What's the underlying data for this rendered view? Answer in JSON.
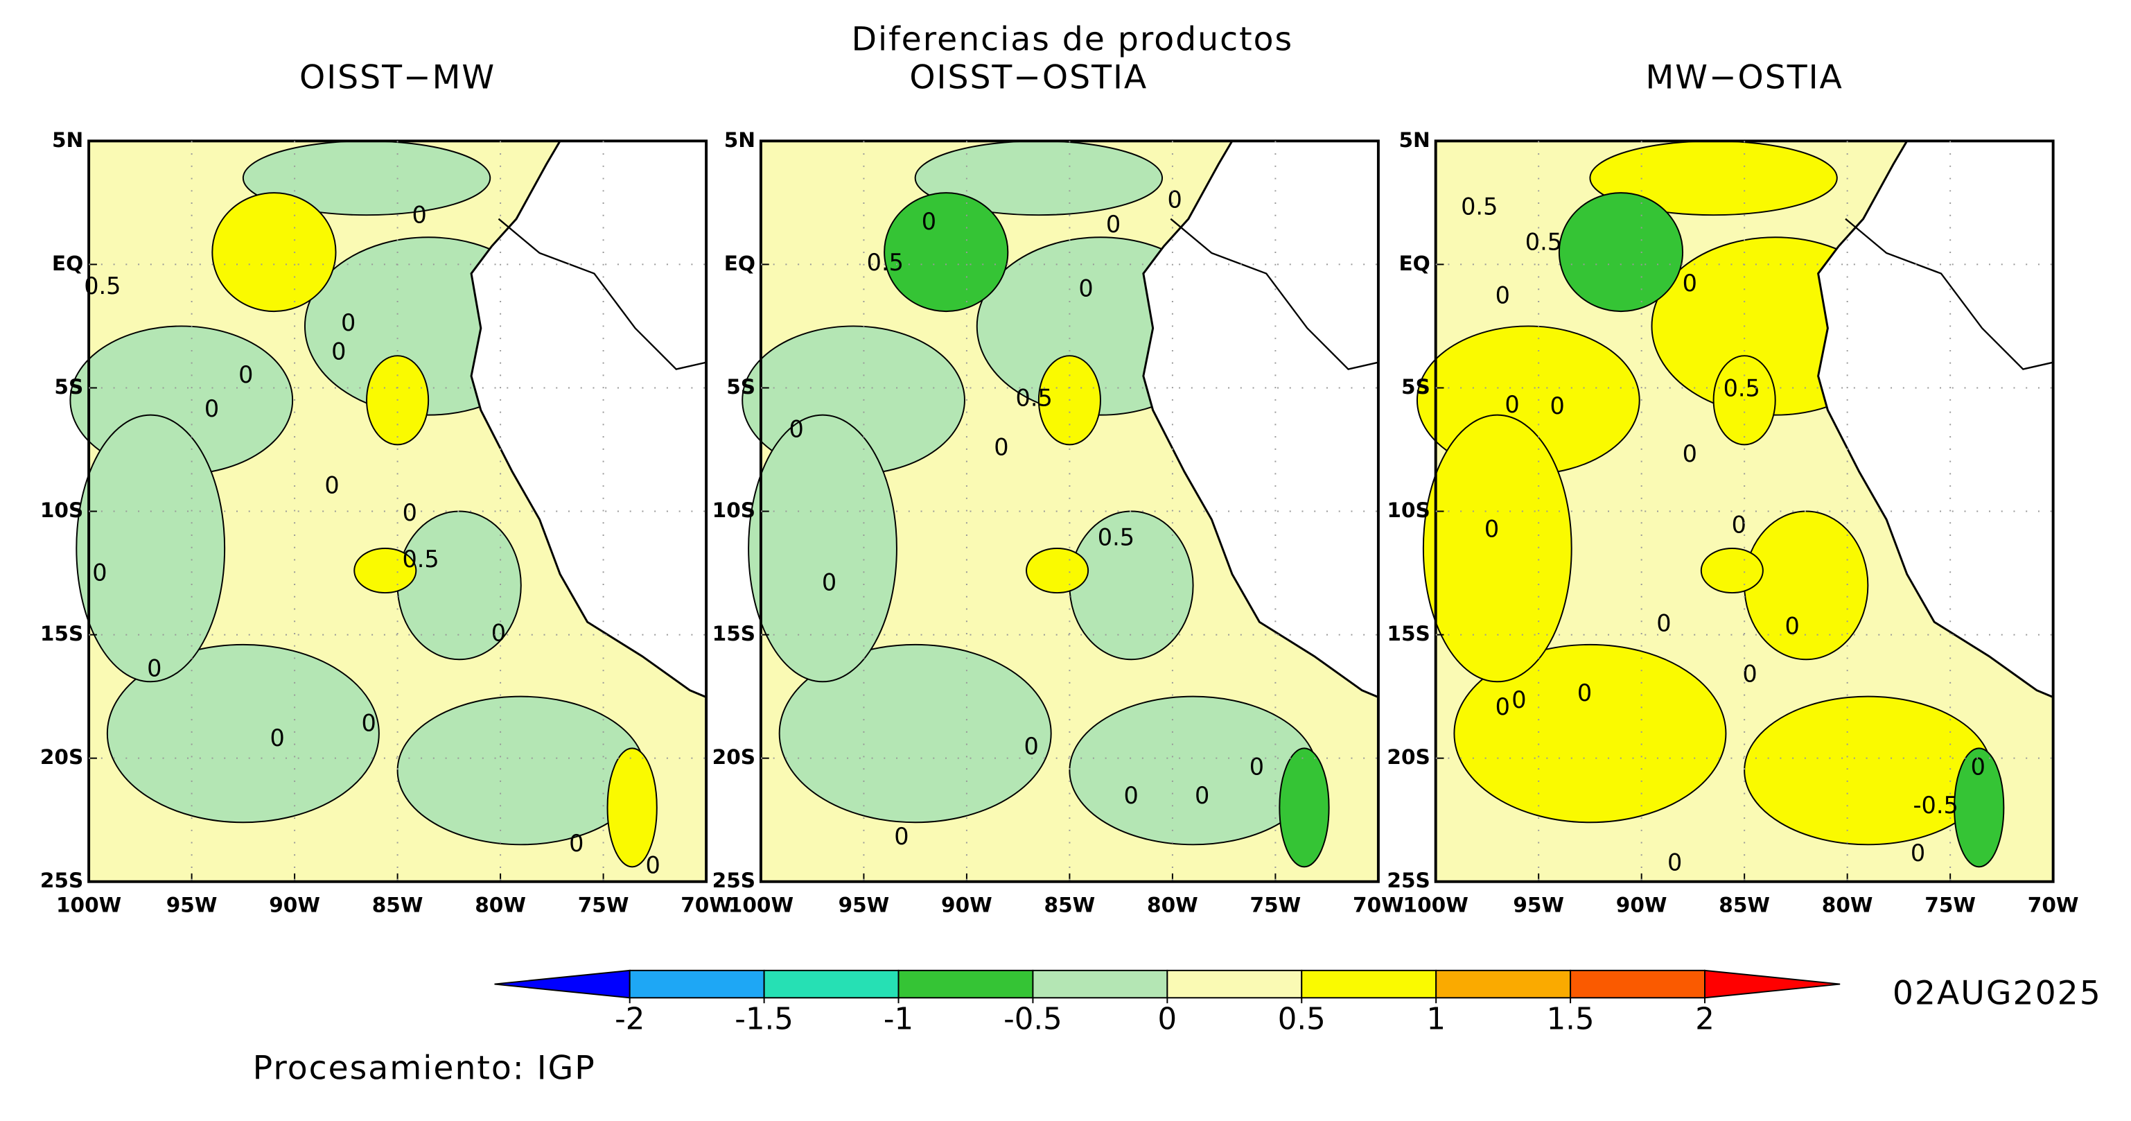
{
  "title": "Diferencias de productos",
  "panels": [
    {
      "title": "OISST−MW",
      "contour_labels": [
        "0.5",
        "0",
        "0",
        "0",
        "0",
        "0",
        "0",
        "0",
        "0.5",
        "0",
        "0",
        "0",
        "0",
        "0",
        "0",
        "0"
      ]
    },
    {
      "title": "OISST−OSTIA",
      "contour_labels": [
        "0.5",
        "0",
        "0",
        "0",
        "0",
        "0.5",
        "0",
        "0",
        "0.5",
        "0",
        "0",
        "0",
        "0",
        "0",
        "0"
      ]
    },
    {
      "title": "MW−OSTIA",
      "contour_labels": [
        "0.5",
        "0.5",
        "0",
        "0",
        "0",
        "0",
        "0.5",
        "0",
        "0",
        "0",
        "0",
        "0",
        "0",
        "0",
        "0",
        "0",
        "0",
        "-0.5",
        "0",
        "0"
      ]
    }
  ],
  "x_ticks": [
    "100W",
    "95W",
    "90W",
    "85W",
    "80W",
    "75W",
    "70W"
  ],
  "y_ticks": [
    "5N",
    "EQ",
    "5S",
    "10S",
    "15S",
    "20S",
    "25S"
  ],
  "colorbar": {
    "ticks": [
      -2,
      -1.5,
      -1,
      -0.5,
      0,
      0.5,
      1,
      1.5,
      2
    ],
    "colors": [
      "#0000ff",
      "#1ea7f5",
      "#26e0b4",
      "#35c435",
      "#b4e6b4",
      "#fafab4",
      "#fafa00",
      "#faaa00",
      "#fa5a00",
      "#ff0000"
    ]
  },
  "date": "02AUG2025",
  "credit": "Procesamiento: IGP"
}
